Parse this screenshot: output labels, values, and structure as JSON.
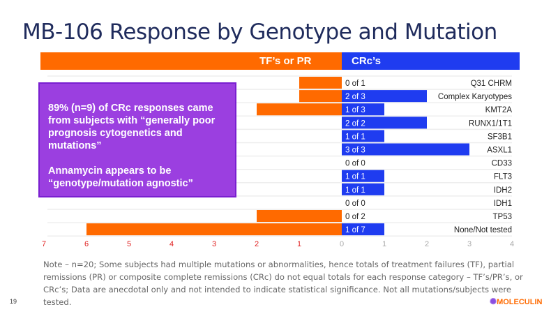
{
  "title": "MB-106 Response by Genotype and Mutation",
  "page_number": "19",
  "logo_text": "MOLECULIN",
  "callout": {
    "line1": "89% (n=9) of CRc responses came from subjects with “generally poor prognosis cytogenetics and mutations”",
    "line2": "Annamycin appears to be “genotype/mutation agnostic”"
  },
  "note": "Note – n=20; Some subjects had multiple mutations or abnormalities, hence totals of treatment failures (TF), partial remissions (PR) or composite complete remissions (CRc) do not equal totals for each response category – TF’s/PR’s, or CRc’s; Data are anecdotal only and not intended to indicate statistical significance. Not all mutations/subjects were tested.",
  "chart_data": {
    "type": "bar",
    "orientation": "horizontal-diverging",
    "categories": [
      "Q31 CHRM",
      "Complex Karyotypes",
      "KMT2A",
      "RUNX1/1T1",
      "SF3B1",
      "ASXL1",
      "CD33",
      "FLT3",
      "IDH2",
      "IDH1",
      "TP53",
      "None/Not tested"
    ],
    "series": [
      {
        "name": "TF’s or PR",
        "color": "#ff6a00",
        "values": [
          1,
          1,
          2,
          0,
          0,
          0,
          0,
          0,
          0,
          0,
          2,
          6
        ]
      },
      {
        "name": "CRc’s",
        "color": "#1f3cf0",
        "values": [
          0,
          2,
          1,
          2,
          1,
          3,
          0,
          1,
          1,
          0,
          0,
          1
        ]
      }
    ],
    "data_labels": [
      "0 of 1",
      "2 of 3",
      "1 of 3",
      "2 of 2",
      "1 of 1",
      "3 of 3",
      "0 of 0",
      "1 of 1",
      "1 of 1",
      "0 of 0",
      "0 of 2",
      "1 of 7"
    ],
    "left_ticks": [
      "7",
      "6",
      "5",
      "4",
      "3",
      "2",
      "1"
    ],
    "right_ticks": [
      "0",
      "1",
      "2",
      "3",
      "4"
    ],
    "left_xlim": [
      0,
      7
    ],
    "right_xlim": [
      0,
      4
    ],
    "grid": "horizontal row separators"
  }
}
